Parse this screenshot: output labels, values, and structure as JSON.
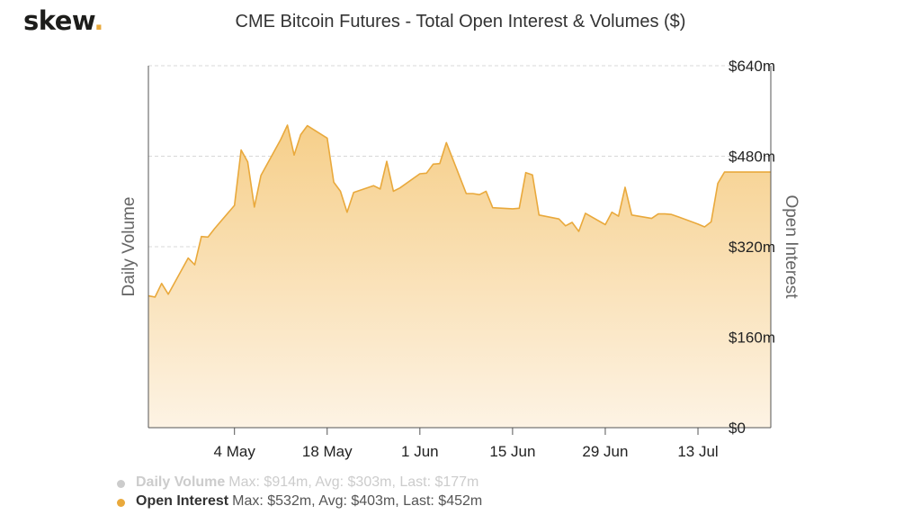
{
  "header": {
    "logo_text": "skew",
    "logo_dot": ".",
    "title": "CME Bitcoin Futures - Total Open Interest & Volumes ($)"
  },
  "colors": {
    "series": "#e9a93c",
    "fill_top": "#f6cf8a",
    "fill_bottom": "#fdf3e4",
    "grid": "#d8d8d8",
    "axis": "#555555",
    "legend_inactive": "#cccccc"
  },
  "legend": [
    {
      "name": "Daily Volume",
      "stats": "Max: $914m, Avg: $303m, Last: $177m",
      "active": false
    },
    {
      "name": "Open Interest",
      "stats": "Max: $532m, Avg: $403m, Last: $452m",
      "active": true
    }
  ],
  "chart_data": {
    "type": "area",
    "title": "CME Bitcoin Futures - Total Open Interest & Volumes ($)",
    "ylabel_left": "Daily Volume",
    "ylabel_right": "Open Interest",
    "xlim": [
      "2020-04-21",
      "2020-07-24"
    ],
    "x_ticks": [
      {
        "date": "2020-05-04",
        "label": "4 May"
      },
      {
        "date": "2020-05-18",
        "label": "18 May"
      },
      {
        "date": "2020-06-01",
        "label": "1 Jun"
      },
      {
        "date": "2020-06-15",
        "label": "15 Jun"
      },
      {
        "date": "2020-06-29",
        "label": "29 Jun"
      },
      {
        "date": "2020-07-13",
        "label": "13 Jul"
      }
    ],
    "y_right": {
      "ylim": [
        0,
        640
      ],
      "ticks": [
        0,
        160,
        320,
        480,
        640
      ],
      "tick_labels": [
        "$0",
        "$160m",
        "$320m",
        "$480m",
        "$640m"
      ],
      "unit": "$m"
    },
    "grid": true,
    "legend_position": "bottom-left",
    "series": [
      {
        "name": "Open Interest",
        "x": [
          "2020-04-21",
          "2020-04-22",
          "2020-04-23",
          "2020-04-24",
          "2020-04-27",
          "2020-04-28",
          "2020-04-29",
          "2020-04-30",
          "2020-05-01",
          "2020-05-04",
          "2020-05-05",
          "2020-05-06",
          "2020-05-07",
          "2020-05-08",
          "2020-05-11",
          "2020-05-12",
          "2020-05-13",
          "2020-05-14",
          "2020-05-15",
          "2020-05-18",
          "2020-05-19",
          "2020-05-20",
          "2020-05-21",
          "2020-05-22",
          "2020-05-25",
          "2020-05-26",
          "2020-05-27",
          "2020-05-28",
          "2020-05-29",
          "2020-06-01",
          "2020-06-02",
          "2020-06-03",
          "2020-06-04",
          "2020-06-05",
          "2020-06-08",
          "2020-06-09",
          "2020-06-10",
          "2020-06-11",
          "2020-06-12",
          "2020-06-15",
          "2020-06-16",
          "2020-06-17",
          "2020-06-18",
          "2020-06-19",
          "2020-06-22",
          "2020-06-23",
          "2020-06-24",
          "2020-06-25",
          "2020-06-26",
          "2020-06-29",
          "2020-06-30",
          "2020-07-01",
          "2020-07-02",
          "2020-07-03",
          "2020-07-06",
          "2020-07-07",
          "2020-07-08",
          "2020-07-09",
          "2020-07-10",
          "2020-07-13",
          "2020-07-14",
          "2020-07-15",
          "2020-07-16",
          "2020-07-17",
          "2020-07-20",
          "2020-07-21",
          "2020-07-22",
          "2020-07-23",
          "2020-07-24"
        ],
        "values": [
          233,
          231,
          255,
          236,
          300,
          288,
          338,
          337,
          352,
          393,
          491,
          470,
          390,
          446,
          510,
          535,
          482,
          518,
          534,
          512,
          434,
          418,
          381,
          416,
          428,
          422,
          471,
          418,
          424,
          449,
          450,
          466,
          467,
          504,
          414,
          414,
          412,
          418,
          389,
          387,
          388,
          451,
          447,
          376,
          369,
          357,
          363,
          347,
          379,
          359,
          381,
          374,
          425,
          376,
          370,
          378,
          378,
          377,
          373,
          360,
          355,
          364,
          432,
          452,
          452,
          452,
          452,
          452,
          452
        ]
      }
    ]
  }
}
